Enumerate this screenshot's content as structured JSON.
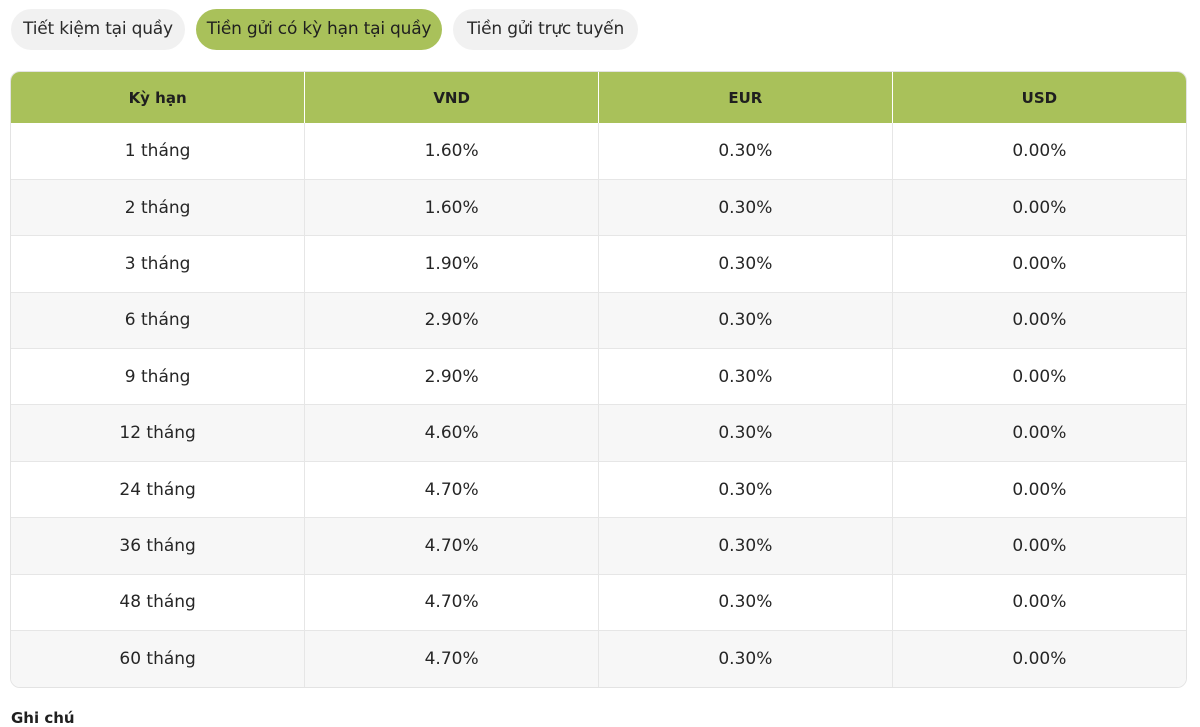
{
  "tabs": [
    {
      "label": "Tiết kiệm tại quầy",
      "active": false
    },
    {
      "label": "Tiền gửi có kỳ hạn tại quầy",
      "active": true
    },
    {
      "label": "Tiền gửi trực tuyến",
      "active": false
    }
  ],
  "table": {
    "headers": [
      "Kỳ hạn",
      "VND",
      "EUR",
      "USD"
    ],
    "rows": [
      [
        "1 tháng",
        "1.60%",
        "0.30%",
        "0.00%"
      ],
      [
        "2 tháng",
        "1.60%",
        "0.30%",
        "0.00%"
      ],
      [
        "3 tháng",
        "1.90%",
        "0.30%",
        "0.00%"
      ],
      [
        "6 tháng",
        "2.90%",
        "0.30%",
        "0.00%"
      ],
      [
        "9 tháng",
        "2.90%",
        "0.30%",
        "0.00%"
      ],
      [
        "12 tháng",
        "4.60%",
        "0.30%",
        "0.00%"
      ],
      [
        "24 tháng",
        "4.70%",
        "0.30%",
        "0.00%"
      ],
      [
        "36 tháng",
        "4.70%",
        "0.30%",
        "0.00%"
      ],
      [
        "48 tháng",
        "4.70%",
        "0.30%",
        "0.00%"
      ],
      [
        "60 tháng",
        "4.70%",
        "0.30%",
        "0.00%"
      ]
    ]
  },
  "note": {
    "label": "Ghi chú"
  },
  "colors": {
    "accent": "#a9c15a",
    "tab_inactive": "#f1f1f1",
    "row_alt": "#f7f7f7"
  }
}
